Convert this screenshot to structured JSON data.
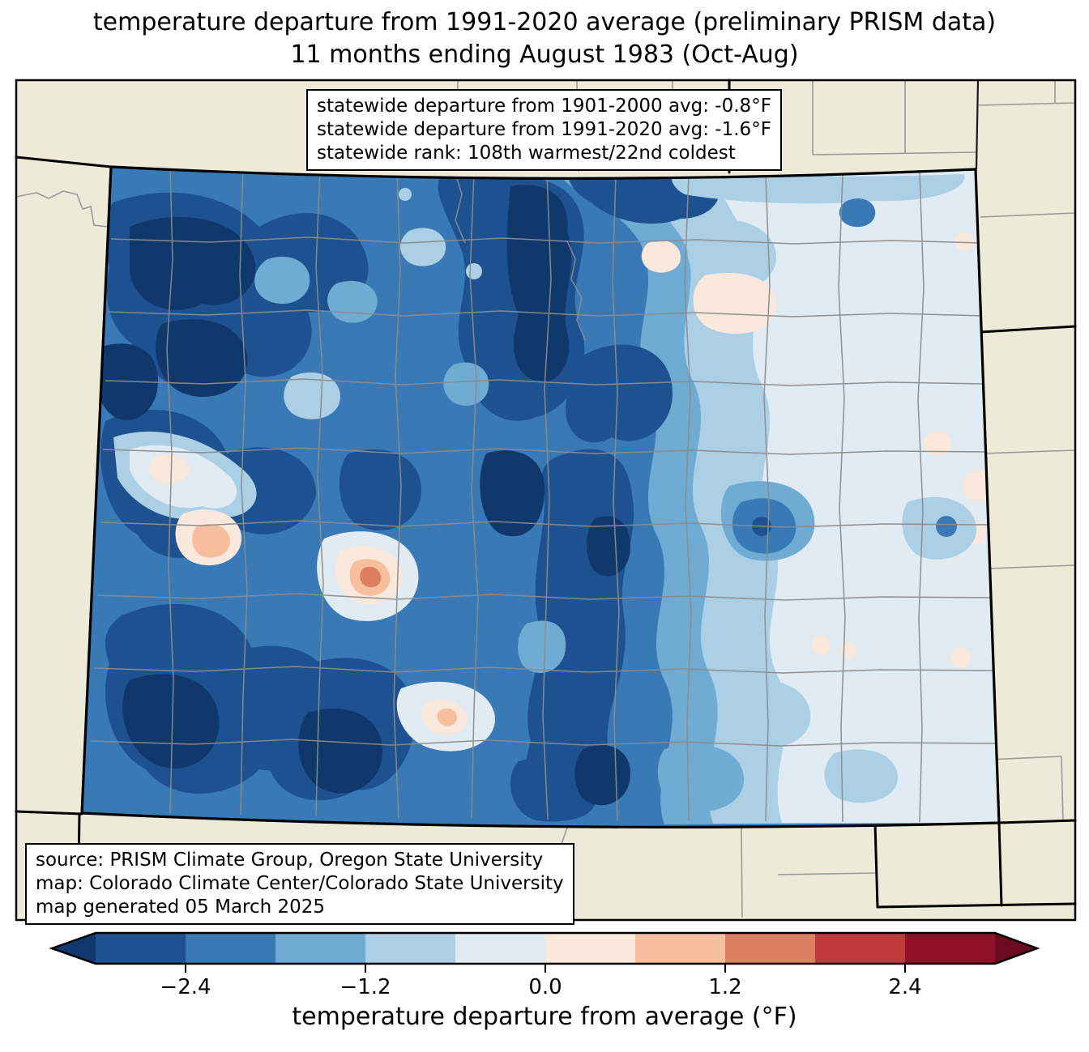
{
  "title": {
    "line1": "temperature departure from 1991-2020 average (preliminary PRISM data)",
    "line2": "11 months ending August 1983 (Oct-Aug)"
  },
  "stats_box": {
    "lines": [
      "statewide departure from 1901-2000 avg: -0.8°F",
      "statewide departure from 1991-2020 avg: -1.6°F",
      "statewide rank: 108th warmest/22nd coldest"
    ]
  },
  "source_box": {
    "lines": [
      "source: PRISM Climate Group, Oregon State University",
      "map: Colorado Climate Center/Colorado State University",
      "map generated 05 March 2025"
    ]
  },
  "colorbar": {
    "label": "temperature departure from average (°F)",
    "ticks": [
      "−2.4",
      "−1.2",
      "0.0",
      "1.2",
      "2.4"
    ],
    "tick_values": [
      -2.4,
      -1.2,
      0.0,
      1.2,
      2.4
    ],
    "range": [
      -3.0,
      3.0
    ],
    "segment_colors": [
      "#1e5190",
      "#3879b6",
      "#6fabd3",
      "#abd0e6",
      "#e1ebf4",
      "#fae8dc",
      "#f8bf9f",
      "#dd8061",
      "#c13a3a",
      "#8e1127"
    ],
    "under_color": "#11386c",
    "over_color": "#6a0b20"
  },
  "map": {
    "region": "Colorado",
    "background_color": "#edead8",
    "county_line_color": "#8c8c8c",
    "neighbor_county_line_color": "#9a9a98",
    "state_border_color": "#000000",
    "palette": {
      "segments": [
        "#1e5190",
        "#3879b6",
        "#6fabd3",
        "#abd0e6",
        "#e1ebf4",
        "#fae8dc",
        "#f8bf9f",
        "#dd8061",
        "#c13a3a",
        "#8e1127"
      ],
      "under": "#11386c",
      "over": "#6a0b20"
    }
  },
  "chart_data": {
    "type": "heatmap",
    "title": "temperature departure from 1991-2020 average (preliminary PRISM data)",
    "subtitle": "11 months ending August 1983 (Oct-Aug)",
    "region": "Colorado",
    "variable": "temperature departure from average (°F)",
    "statewide_departure_from_1901_2000_avg_F": -0.8,
    "statewide_departure_from_1991_2020_avg_F": -1.6,
    "statewide_rank": "108th warmest/22nd coldest",
    "colorbar": {
      "label": "temperature departure from average (°F)",
      "ticks": [
        -2.4,
        -1.2,
        0.0,
        1.2,
        2.4
      ],
      "levels": [
        -3.0,
        -2.4,
        -1.8,
        -1.2,
        -0.6,
        0.0,
        0.6,
        1.2,
        1.8,
        2.4,
        3.0
      ],
      "colors": [
        "#1e5190",
        "#3879b6",
        "#6fabd3",
        "#abd0e6",
        "#e1ebf4",
        "#fae8dc",
        "#f8bf9f",
        "#dd8061",
        "#c13a3a",
        "#8e1127"
      ],
      "extend": "both",
      "position": "bottom"
    },
    "summary": "Nearly the entire state shows negative departures (blues); coldest anomalies (below -3.0°F) over the western and central mountains, mildest (near 0 with a few small positive pockets) over the eastern plains and a few western valleys.",
    "source": "PRISM Climate Group, Oregon State University",
    "map_credit": "Colorado Climate Center/Colorado State University",
    "generated": "05 March 2025"
  }
}
